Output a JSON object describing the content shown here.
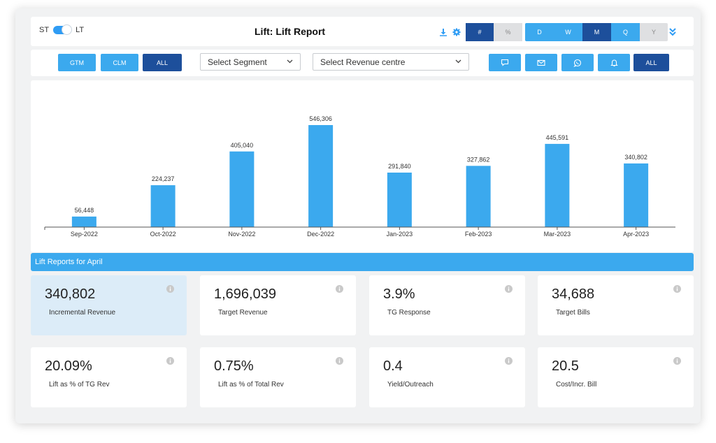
{
  "header": {
    "toggle_left": "ST",
    "toggle_right": "LT",
    "title": "Lift: Lift Report",
    "value_toggle": [
      "#",
      "%"
    ],
    "period_toggle": [
      "D",
      "W",
      "M",
      "Q",
      "Y"
    ]
  },
  "filters": {
    "channel_buttons": [
      "GTM",
      "CLM",
      "ALL"
    ],
    "segment_select": "Select Segment",
    "revenue_select": "Select Revenue centre",
    "right_all": "ALL"
  },
  "chart_data": {
    "type": "bar",
    "categories": [
      "Sep-2022",
      "Oct-2022",
      "Nov-2022",
      "Dec-2022",
      "Jan-2023",
      "Feb-2023",
      "Mar-2023",
      "Apr-2023"
    ],
    "values": [
      56448,
      224237,
      405040,
      546306,
      291840,
      327862,
      445591,
      340802
    ],
    "value_labels": [
      "56,448",
      "224,237",
      "405,040",
      "546,306",
      "291,840",
      "327,862",
      "445,591",
      "340,802"
    ],
    "color": "#3ba9ee",
    "ylim": [
      0,
      600000
    ],
    "grid": false
  },
  "section": {
    "title": "Lift Reports for April"
  },
  "cards": [
    {
      "value": "340,802",
      "label": "Incremental Revenue"
    },
    {
      "value": "1,696,039",
      "label": "Target Revenue"
    },
    {
      "value": "3.9%",
      "label": "TG Response"
    },
    {
      "value": "34,688",
      "label": "Target Bills"
    },
    {
      "value": "20.09%",
      "label": "Lift as % of TG Rev"
    },
    {
      "value": "0.75%",
      "label": "Lift as % of Total Rev"
    },
    {
      "value": "0.4",
      "label": "Yield/Outreach"
    },
    {
      "value": "20.5",
      "label": "Cost/Incr. Bill"
    }
  ]
}
